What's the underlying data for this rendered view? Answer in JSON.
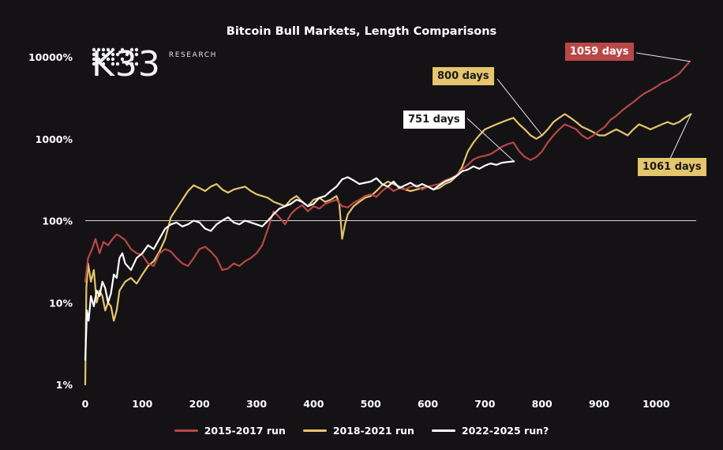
{
  "chart_data": {
    "type": "line",
    "title": "Bitcoin Bull Markets, Length Comparisons",
    "xlabel": "",
    "ylabel": "",
    "y_scale": "log",
    "xlim": [
      0,
      1070
    ],
    "ylim": [
      1,
      10000
    ],
    "x_ticks": [
      0,
      100,
      200,
      300,
      400,
      500,
      600,
      700,
      800,
      900,
      1000
    ],
    "x_tick_labels": [
      "0",
      "100",
      "200",
      "300",
      "400",
      "500",
      "600",
      "700",
      "800",
      "900",
      "1000"
    ],
    "y_ticks": [
      1,
      10,
      100,
      1000,
      10000
    ],
    "y_tick_labels": [
      "1%",
      "10%",
      "100%",
      "1000%",
      "10000%"
    ],
    "reference_line_y": 100,
    "legend_position": "bottom",
    "series": [
      {
        "name": "2015-2017 run",
        "color": "#b94747",
        "x": [
          0,
          5,
          12,
          18,
          25,
          32,
          40,
          48,
          55,
          60,
          70,
          80,
          90,
          100,
          110,
          120,
          130,
          140,
          150,
          160,
          170,
          180,
          190,
          200,
          210,
          220,
          230,
          240,
          250,
          260,
          270,
          280,
          290,
          300,
          310,
          320,
          330,
          340,
          350,
          360,
          370,
          380,
          390,
          400,
          410,
          420,
          430,
          440,
          450,
          460,
          470,
          480,
          490,
          500,
          510,
          520,
          530,
          540,
          550,
          560,
          570,
          580,
          590,
          600,
          610,
          620,
          630,
          640,
          650,
          660,
          670,
          680,
          690,
          700,
          710,
          720,
          730,
          740,
          750,
          760,
          770,
          780,
          790,
          800,
          810,
          820,
          830,
          840,
          850,
          860,
          870,
          880,
          890,
          900,
          910,
          920,
          930,
          940,
          950,
          960,
          970,
          980,
          990,
          1000,
          1010,
          1020,
          1030,
          1040,
          1050,
          1059
        ],
        "values": [
          18,
          35,
          45,
          60,
          40,
          55,
          50,
          60,
          68,
          65,
          58,
          45,
          40,
          38,
          30,
          28,
          40,
          45,
          42,
          35,
          30,
          28,
          35,
          45,
          48,
          42,
          35,
          25,
          26,
          30,
          28,
          32,
          35,
          40,
          50,
          80,
          130,
          110,
          90,
          120,
          140,
          155,
          130,
          150,
          140,
          160,
          170,
          180,
          150,
          145,
          165,
          180,
          200,
          210,
          195,
          230,
          260,
          230,
          250,
          240,
          260,
          270,
          240,
          260,
          270,
          280,
          310,
          330,
          360,
          420,
          480,
          560,
          600,
          620,
          650,
          720,
          800,
          860,
          900,
          700,
          600,
          550,
          600,
          700,
          900,
          1100,
          1300,
          1500,
          1400,
          1300,
          1100,
          1000,
          1100,
          1250,
          1400,
          1700,
          1900,
          2200,
          2500,
          2800,
          3200,
          3600,
          3900,
          4300,
          4800,
          5100,
          5600,
          6200,
          7500,
          8800
        ]
      },
      {
        "name": "2018-2021 run",
        "color": "#e5c56d",
        "x": [
          0,
          2,
          5,
          10,
          15,
          20,
          25,
          30,
          35,
          40,
          45,
          50,
          55,
          60,
          70,
          80,
          90,
          100,
          110,
          120,
          130,
          140,
          150,
          160,
          170,
          180,
          190,
          200,
          210,
          220,
          230,
          240,
          250,
          260,
          270,
          280,
          290,
          300,
          310,
          320,
          330,
          340,
          350,
          360,
          370,
          380,
          390,
          400,
          410,
          420,
          430,
          440,
          445,
          450,
          455,
          460,
          470,
          480,
          490,
          500,
          510,
          520,
          530,
          540,
          550,
          560,
          570,
          580,
          590,
          600,
          610,
          620,
          630,
          640,
          650,
          660,
          670,
          680,
          690,
          700,
          710,
          720,
          730,
          740,
          750,
          760,
          770,
          780,
          790,
          800,
          810,
          820,
          830,
          840,
          850,
          860,
          870,
          880,
          890,
          900,
          910,
          920,
          930,
          940,
          950,
          960,
          970,
          980,
          990,
          1000,
          1010,
          1020,
          1030,
          1040,
          1050,
          1061
        ],
        "values": [
          1,
          15,
          30,
          18,
          25,
          10,
          14,
          12,
          8,
          10,
          9,
          6,
          8,
          14,
          18,
          20,
          17,
          22,
          28,
          32,
          42,
          60,
          110,
          140,
          180,
          230,
          270,
          250,
          230,
          260,
          280,
          240,
          220,
          240,
          250,
          260,
          230,
          210,
          200,
          190,
          170,
          160,
          150,
          180,
          200,
          170,
          150,
          180,
          190,
          170,
          180,
          200,
          160,
          60,
          90,
          120,
          150,
          170,
          190,
          200,
          230,
          270,
          300,
          280,
          260,
          240,
          230,
          240,
          250,
          260,
          240,
          250,
          280,
          300,
          350,
          450,
          700,
          900,
          1100,
          1300,
          1400,
          1500,
          1600,
          1700,
          1800,
          1500,
          1300,
          1100,
          1000,
          1100,
          1300,
          1600,
          1800,
          2000,
          1800,
          1600,
          1400,
          1300,
          1200,
          1100,
          1100,
          1200,
          1300,
          1200,
          1100,
          1300,
          1500,
          1400,
          1300,
          1400,
          1500,
          1600,
          1500,
          1600,
          1800,
          2000
        ]
      },
      {
        "name": "2022-2025 run?",
        "color": "#ffffff",
        "x": [
          0,
          3,
          6,
          10,
          15,
          20,
          25,
          30,
          35,
          40,
          45,
          50,
          55,
          60,
          65,
          70,
          80,
          90,
          100,
          110,
          120,
          130,
          140,
          150,
          160,
          170,
          180,
          190,
          200,
          210,
          220,
          230,
          240,
          250,
          260,
          270,
          280,
          290,
          300,
          310,
          320,
          330,
          340,
          350,
          360,
          370,
          380,
          390,
          400,
          410,
          420,
          430,
          440,
          450,
          460,
          470,
          480,
          490,
          500,
          510,
          520,
          530,
          540,
          550,
          560,
          570,
          580,
          590,
          600,
          610,
          620,
          630,
          640,
          650,
          660,
          670,
          680,
          690,
          700,
          710,
          720,
          730,
          740,
          751
        ],
        "values": [
          2,
          8,
          6,
          12,
          9,
          14,
          12,
          18,
          15,
          10,
          13,
          22,
          20,
          35,
          40,
          30,
          25,
          35,
          40,
          50,
          45,
          60,
          80,
          90,
          95,
          85,
          90,
          100,
          95,
          80,
          75,
          90,
          100,
          110,
          95,
          90,
          100,
          95,
          90,
          85,
          100,
          120,
          140,
          150,
          160,
          180,
          170,
          150,
          160,
          190,
          200,
          230,
          260,
          320,
          340,
          310,
          280,
          290,
          300,
          330,
          280,
          260,
          300,
          250,
          270,
          290,
          260,
          280,
          260,
          240,
          270,
          300,
          320,
          350,
          400,
          420,
          460,
          430,
          470,
          500,
          480,
          510,
          520,
          530
        ]
      }
    ],
    "annotations": [
      {
        "text": "1059 days",
        "series": "2015-2017 run",
        "x": 1059
      },
      {
        "text": "800 days",
        "series": "2018-2021 run",
        "x": 800
      },
      {
        "text": "751 days",
        "series": "2022-2025 run?",
        "x": 751
      },
      {
        "text": "1061 days",
        "series": "2018-2021 run",
        "x": 1061
      }
    ]
  },
  "logo": {
    "mark": "K33",
    "sub": "RESEARCH"
  }
}
